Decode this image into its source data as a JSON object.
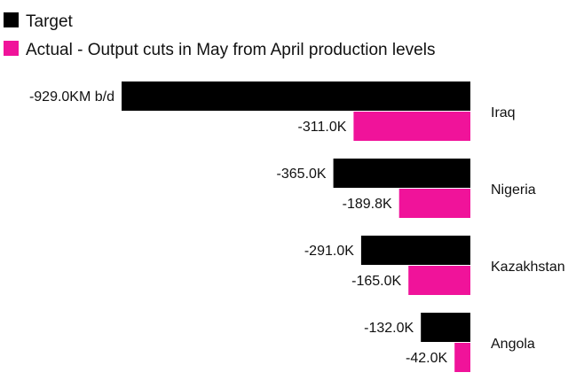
{
  "chart_data": {
    "type": "bar",
    "orientation": "horizontal",
    "direction": "negative-left",
    "categories": [
      "Iraq",
      "Nigeria",
      "Kazakhstan",
      "Angola"
    ],
    "series": [
      {
        "name": "Target",
        "color": "#000000",
        "values": [
          -929.0,
          -365.0,
          -291.0,
          -132.0
        ],
        "labels": [
          "-929.0KM b/d",
          "-365.0K",
          "-291.0K",
          "-132.0K"
        ]
      },
      {
        "name": "Actual - Output cuts in May from April production levels",
        "color": "#f0139a",
        "values": [
          -311.0,
          -189.8,
          -165.0,
          -42.0
        ],
        "labels": [
          "-311.0K",
          "-189.8K",
          "-165.0K",
          "-42.0K"
        ]
      }
    ],
    "xlim": [
      -929.0,
      0
    ],
    "units": "thousand barrels per day",
    "legend_position": "top-left",
    "grid": false
  }
}
